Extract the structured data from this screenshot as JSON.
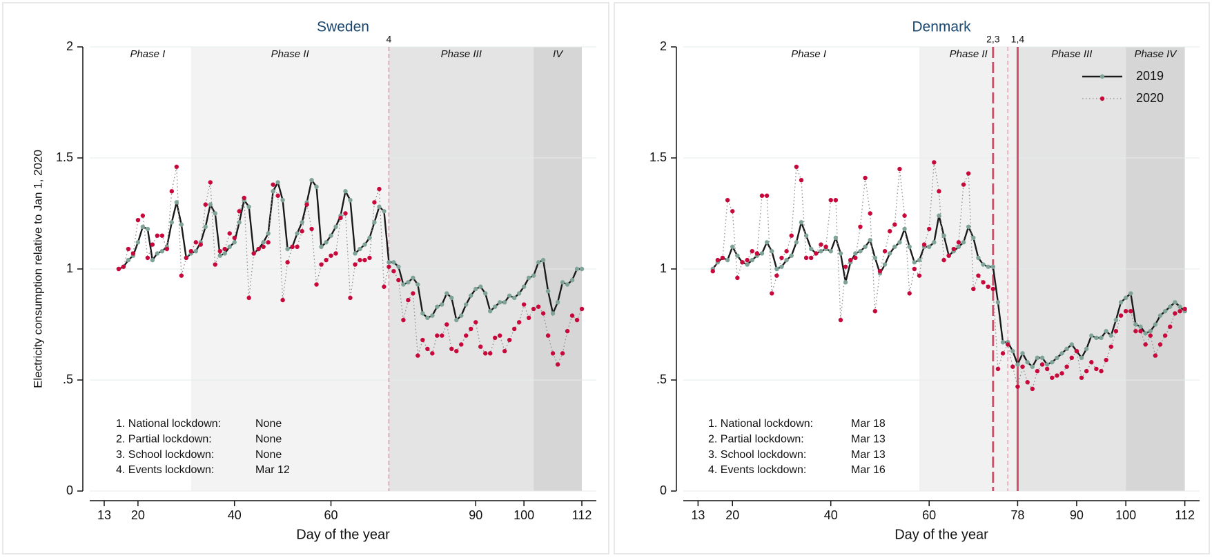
{
  "chart_data": [
    {
      "type": "line",
      "title": "Sweden",
      "xlabel": "Day of the year",
      "ylabel": "Electricity consumption relative to Jan 1, 2020",
      "xlim": [
        10,
        115
      ],
      "ylim": [
        0,
        2
      ],
      "xticks": [
        13,
        20,
        40,
        60,
        90,
        100,
        112
      ],
      "yticks": [
        0,
        {
          "value": 0.5,
          "label": ".5"
        },
        1,
        1.5,
        2
      ],
      "grid": true,
      "legend": false,
      "phases": [
        {
          "label": "Phase I",
          "start": 13,
          "end": 31
        },
        {
          "label": "Phase II",
          "start": 31,
          "end": 72,
          "color": "#f3f3f3"
        },
        {
          "label": "Phase III",
          "start": 72,
          "end": 102,
          "color": "#e4e4e4"
        },
        {
          "label": "IV",
          "start": 102,
          "end": 112,
          "color": "#d6d6d6"
        }
      ],
      "events": [
        {
          "label": "4",
          "x": 72,
          "style": "dashed",
          "color": "#e58fa0"
        }
      ],
      "lockdowns": [
        {
          "event": "1. National lockdown:",
          "date": "None"
        },
        {
          "event": "2. Partial lockdown:",
          "date": "None"
        },
        {
          "event": "3. School lockdown:",
          "date": "None"
        },
        {
          "event": "4. Events lockdown:",
          "date": "Mar 12"
        }
      ],
      "x": [
        16,
        17,
        18,
        19,
        20,
        21,
        22,
        23,
        24,
        25,
        26,
        27,
        28,
        29,
        30,
        31,
        32,
        33,
        34,
        35,
        36,
        37,
        38,
        39,
        40,
        41,
        42,
        43,
        44,
        45,
        46,
        47,
        48,
        49,
        50,
        51,
        52,
        53,
        54,
        55,
        56,
        57,
        58,
        59,
        60,
        61,
        62,
        63,
        64,
        65,
        66,
        67,
        68,
        69,
        70,
        71,
        72,
        73,
        74,
        75,
        76,
        77,
        78,
        79,
        80,
        81,
        82,
        83,
        84,
        85,
        86,
        87,
        88,
        89,
        90,
        91,
        92,
        93,
        94,
        95,
        96,
        97,
        98,
        99,
        100,
        101,
        102,
        103,
        104,
        105,
        106,
        107,
        108,
        109,
        110,
        111,
        112
      ],
      "series": [
        {
          "name": "2019",
          "color": "#1a1a1a",
          "marker_color": "#7fa398",
          "style": "solid",
          "values": [
            1.0,
            1.01,
            1.04,
            1.06,
            1.12,
            1.19,
            1.18,
            1.04,
            1.07,
            1.08,
            1.1,
            1.21,
            1.3,
            1.2,
            1.05,
            1.07,
            1.08,
            1.12,
            1.19,
            1.29,
            1.25,
            1.06,
            1.07,
            1.1,
            1.12,
            1.21,
            1.31,
            1.28,
            1.07,
            1.09,
            1.12,
            1.16,
            1.35,
            1.39,
            1.31,
            1.09,
            1.1,
            1.16,
            1.21,
            1.3,
            1.4,
            1.37,
            1.1,
            1.12,
            1.15,
            1.19,
            1.24,
            1.35,
            1.31,
            1.07,
            1.09,
            1.11,
            1.14,
            1.21,
            1.28,
            1.26,
            1.03,
            1.03,
            1.01,
            0.93,
            0.94,
            0.96,
            0.93,
            0.8,
            0.78,
            0.79,
            0.83,
            0.84,
            0.89,
            0.87,
            0.77,
            0.79,
            0.84,
            0.88,
            0.91,
            0.92,
            0.89,
            0.81,
            0.83,
            0.85,
            0.85,
            0.88,
            0.87,
            0.89,
            0.92,
            0.96,
            0.97,
            1.03,
            1.04,
            0.9,
            0.8,
            0.85,
            0.94,
            0.93,
            0.95,
            1.0,
            1.0
          ]
        },
        {
          "name": "2020",
          "color": "#8a8a8a",
          "marker_color": "#c8073b",
          "style": "dotted",
          "values": [
            1.0,
            1.01,
            1.09,
            1.07,
            1.22,
            1.24,
            1.05,
            1.11,
            1.15,
            1.15,
            1.09,
            1.35,
            1.46,
            0.97,
            1.05,
            1.08,
            1.12,
            1.11,
            1.29,
            1.39,
            1.02,
            1.08,
            1.09,
            1.16,
            1.14,
            1.26,
            1.32,
            0.87,
            1.07,
            1.09,
            1.1,
            1.12,
            1.38,
            1.33,
            0.86,
            1.03,
            1.1,
            1.1,
            1.17,
            1.29,
            1.18,
            0.93,
            1.02,
            1.04,
            1.06,
            1.07,
            1.23,
            1.25,
            0.87,
            1.02,
            1.04,
            1.04,
            1.05,
            1.3,
            1.36,
            0.92,
            1.01,
            0.99,
            0.95,
            0.77,
            0.86,
            0.89,
            0.61,
            0.68,
            0.64,
            0.62,
            0.7,
            0.7,
            0.75,
            0.64,
            0.63,
            0.66,
            0.7,
            0.73,
            0.76,
            0.65,
            0.62,
            0.62,
            0.69,
            0.7,
            0.63,
            0.68,
            0.73,
            0.76,
            0.84,
            0.78,
            0.82,
            0.83,
            0.8,
            0.7,
            0.62,
            0.57,
            0.62,
            0.72,
            0.79,
            0.77,
            0.82
          ]
        }
      ]
    },
    {
      "type": "line",
      "title": "Denmark",
      "xlabel": "Day of the year",
      "xlim": [
        10,
        115
      ],
      "ylim": [
        0,
        2
      ],
      "xticks": [
        13,
        20,
        40,
        60,
        78,
        90,
        100,
        112
      ],
      "yticks": [
        0,
        {
          "value": 0.5,
          "label": ".5"
        },
        1,
        1.5,
        2
      ],
      "grid": true,
      "legend": "upper right",
      "phases": [
        {
          "label": "Phase I",
          "start": 13,
          "end": 58
        },
        {
          "label": "Phase II",
          "start": 58,
          "end": 78,
          "color": "#f1f1f1"
        },
        {
          "label": "Phase III",
          "start": 78,
          "end": 100,
          "color": "#e4e4e4"
        },
        {
          "label": "Phase IV",
          "start": 100,
          "end": 112,
          "color": "#d6d6d6"
        }
      ],
      "events": [
        {
          "label": "2,3",
          "x": 73,
          "style": "longdash",
          "color": "#d2506b"
        },
        {
          "x": 76,
          "style": "dashed",
          "color": "#e2a3b0"
        },
        {
          "label": "1,4",
          "x": 78,
          "style": "solid",
          "color": "#d2506b"
        }
      ],
      "lockdowns": [
        {
          "event": "1. National lockdown:",
          "date": "Mar 18"
        },
        {
          "event": "2. Partial lockdown:",
          "date": "Mar 13"
        },
        {
          "event": "3. School lockdown:",
          "date": "Mar 13"
        },
        {
          "event": "4. Events lockdown:",
          "date": "Mar 16"
        }
      ],
      "x": [
        16,
        17,
        18,
        19,
        20,
        21,
        22,
        23,
        24,
        25,
        26,
        27,
        28,
        29,
        30,
        31,
        32,
        33,
        34,
        35,
        36,
        37,
        38,
        39,
        40,
        41,
        42,
        43,
        44,
        45,
        46,
        47,
        48,
        49,
        50,
        51,
        52,
        53,
        54,
        55,
        56,
        57,
        58,
        59,
        60,
        61,
        62,
        63,
        64,
        65,
        66,
        67,
        68,
        69,
        70,
        71,
        72,
        73,
        74,
        75,
        76,
        77,
        78,
        79,
        80,
        81,
        82,
        83,
        84,
        85,
        86,
        87,
        88,
        89,
        90,
        91,
        92,
        93,
        94,
        95,
        96,
        97,
        98,
        99,
        100,
        101,
        102,
        103,
        104,
        105,
        106,
        107,
        108,
        109,
        110,
        111,
        112
      ],
      "series": [
        {
          "name": "2019",
          "color": "#1a1a1a",
          "marker_color": "#7fa398",
          "style": "solid",
          "values": [
            1.0,
            1.03,
            1.05,
            1.04,
            1.1,
            1.06,
            1.03,
            1.02,
            1.04,
            1.06,
            1.07,
            1.12,
            1.08,
            1.0,
            1.01,
            1.04,
            1.06,
            1.12,
            1.21,
            1.15,
            1.09,
            1.07,
            1.08,
            1.09,
            1.08,
            1.14,
            1.07,
            0.94,
            1.03,
            1.07,
            1.08,
            1.1,
            1.13,
            1.05,
            0.98,
            1.02,
            1.07,
            1.1,
            1.12,
            1.18,
            1.1,
            1.03,
            1.04,
            1.1,
            1.1,
            1.12,
            1.24,
            1.15,
            1.06,
            1.08,
            1.1,
            1.12,
            1.19,
            1.14,
            1.05,
            1.02,
            1.01,
            1.01,
            0.85,
            0.67,
            0.67,
            0.63,
            0.57,
            0.62,
            0.58,
            0.56,
            0.6,
            0.6,
            0.57,
            0.58,
            0.6,
            0.62,
            0.64,
            0.66,
            0.63,
            0.6,
            0.64,
            0.7,
            0.69,
            0.69,
            0.72,
            0.7,
            0.77,
            0.85,
            0.87,
            0.89,
            0.75,
            0.74,
            0.71,
            0.72,
            0.75,
            0.79,
            0.81,
            0.83,
            0.85,
            0.83,
            0.81
          ]
        },
        {
          "name": "2020",
          "color": "#8a8a8a",
          "marker_color": "#c8073b",
          "style": "dotted",
          "values": [
            0.99,
            1.04,
            1.05,
            1.31,
            1.26,
            0.96,
            1.03,
            1.04,
            1.08,
            1.07,
            1.33,
            1.33,
            0.89,
            0.97,
            1.05,
            1.08,
            1.15,
            1.46,
            1.4,
            1.05,
            1.05,
            1.07,
            1.11,
            1.1,
            1.31,
            1.31,
            0.77,
            1.01,
            1.04,
            1.05,
            1.19,
            1.41,
            1.25,
            0.81,
            0.99,
            1.08,
            1.17,
            1.2,
            1.45,
            1.24,
            0.89,
            1.0,
            0.97,
            1.11,
            1.18,
            1.48,
            1.35,
            1.04,
            1.06,
            1.09,
            1.12,
            1.38,
            1.43,
            0.91,
            0.97,
            0.94,
            0.92,
            0.91,
            0.55,
            0.62,
            0.66,
            0.56,
            0.47,
            0.56,
            0.49,
            0.46,
            0.54,
            0.57,
            0.55,
            0.51,
            0.52,
            0.53,
            0.56,
            0.6,
            0.63,
            0.51,
            0.54,
            0.58,
            0.55,
            0.54,
            0.59,
            0.65,
            0.72,
            0.79,
            0.81,
            0.81,
            0.72,
            0.72,
            0.66,
            0.7,
            0.61,
            0.66,
            0.7,
            0.74,
            0.8,
            0.81,
            0.82
          ]
        }
      ]
    }
  ]
}
